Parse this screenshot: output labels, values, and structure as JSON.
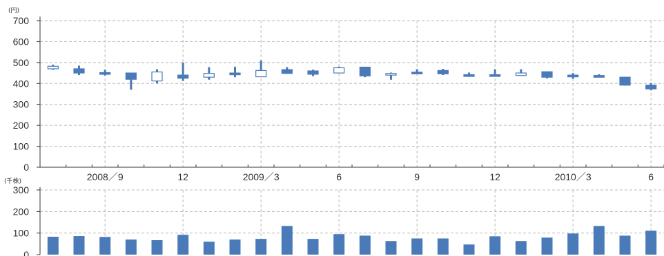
{
  "chart_data": [
    {
      "type": "candlestick",
      "unit_label": "(円)",
      "ylim": [
        0,
        700
      ],
      "yticks": [
        "0",
        "100",
        "200",
        "300",
        "400",
        "500",
        "600",
        "700"
      ],
      "x_labels": [
        {
          "i": 2,
          "text": "2008／9"
        },
        {
          "i": 5,
          "text": "12"
        },
        {
          "i": 8,
          "text": "2009／3"
        },
        {
          "i": 11,
          "text": "6"
        },
        {
          "i": 14,
          "text": "9"
        },
        {
          "i": 17,
          "text": "12"
        },
        {
          "i": 20,
          "text": "2010／3"
        },
        {
          "i": 23,
          "text": "6"
        }
      ],
      "grid": "dashed",
      "candles": [
        {
          "open": 470,
          "close": 482,
          "high": 490,
          "low": 465
        },
        {
          "open": 470,
          "close": 450,
          "high": 485,
          "low": 440
        },
        {
          "open": 452,
          "close": 446,
          "high": 465,
          "low": 438
        },
        {
          "open": 450,
          "close": 420,
          "high": 450,
          "low": 370
        },
        {
          "open": 412,
          "close": 455,
          "high": 468,
          "low": 400
        },
        {
          "open": 440,
          "close": 425,
          "high": 500,
          "low": 412
        },
        {
          "open": 430,
          "close": 448,
          "high": 478,
          "low": 418
        },
        {
          "open": 450,
          "close": 444,
          "high": 480,
          "low": 430
        },
        {
          "open": 432,
          "close": 462,
          "high": 510,
          "low": 432
        },
        {
          "open": 466,
          "close": 448,
          "high": 478,
          "low": 446
        },
        {
          "open": 460,
          "close": 444,
          "high": 466,
          "low": 435
        },
        {
          "open": 450,
          "close": 475,
          "high": 480,
          "low": 450
        },
        {
          "open": 478,
          "close": 436,
          "high": 480,
          "low": 430
        },
        {
          "open": 440,
          "close": 448,
          "high": 452,
          "low": 418
        },
        {
          "open": 454,
          "close": 450,
          "high": 468,
          "low": 446
        },
        {
          "open": 462,
          "close": 446,
          "high": 470,
          "low": 440
        },
        {
          "open": 442,
          "close": 438,
          "high": 452,
          "low": 432
        },
        {
          "open": 442,
          "close": 438,
          "high": 468,
          "low": 436
        },
        {
          "open": 438,
          "close": 450,
          "high": 468,
          "low": 438
        },
        {
          "open": 456,
          "close": 430,
          "high": 456,
          "low": 424
        },
        {
          "open": 440,
          "close": 434,
          "high": 450,
          "low": 422
        },
        {
          "open": 438,
          "close": 434,
          "high": 444,
          "low": 432
        },
        {
          "open": 430,
          "close": 392,
          "high": 430,
          "low": 390
        },
        {
          "open": 392,
          "close": 374,
          "high": 402,
          "low": 368
        }
      ]
    },
    {
      "type": "bar",
      "unit_label": "(千株)",
      "ylim": [
        0,
        300
      ],
      "yticks": [
        "0",
        "100",
        "200",
        "300"
      ],
      "grid": "dashed",
      "values": [
        83,
        86,
        82,
        70,
        67,
        92,
        60,
        70,
        73,
        133,
        73,
        95,
        88,
        63,
        75,
        75,
        47,
        85,
        63,
        79,
        98,
        133,
        88,
        111
      ]
    }
  ],
  "colors": {
    "fill": "#4a7ab8",
    "outline": "#4a7ab8",
    "hollow": "#ffffff",
    "axis": "#333333",
    "grid": "#b8b8b8"
  }
}
